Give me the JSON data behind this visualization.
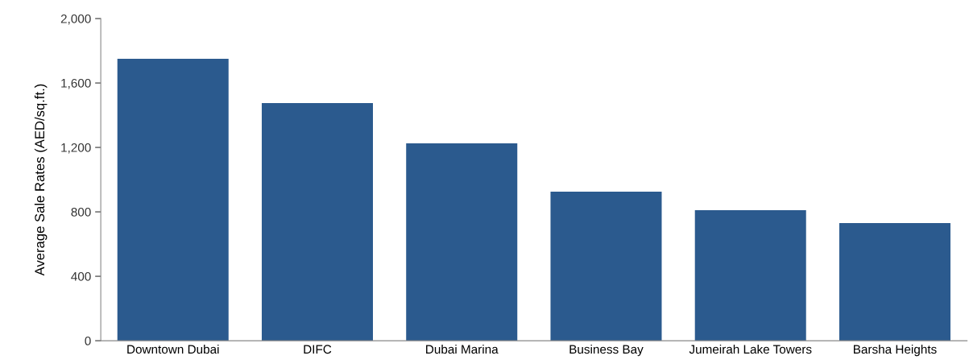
{
  "chart_data": {
    "type": "bar",
    "ylabel": "Average Sale Rates (AED/sq.ft.)",
    "categories": [
      "Downtown Dubai",
      "DIFC",
      "Dubai Marina",
      "Business Bay",
      "Jumeirah Lake Towers",
      "Barsha Heights"
    ],
    "values": [
      1750,
      1475,
      1225,
      925,
      810,
      730
    ],
    "color": "#2b5a8e",
    "ylim": [
      0,
      2000
    ],
    "yticks": [
      {
        "value": 0,
        "label": "0"
      },
      {
        "value": 400,
        "label": "400"
      },
      {
        "value": 800,
        "label": "800"
      },
      {
        "value": 1200,
        "label": "1,200"
      },
      {
        "value": 1600,
        "label": "1,600"
      },
      {
        "value": 2000,
        "label": "2,000"
      }
    ],
    "grid": false,
    "legend": false
  }
}
